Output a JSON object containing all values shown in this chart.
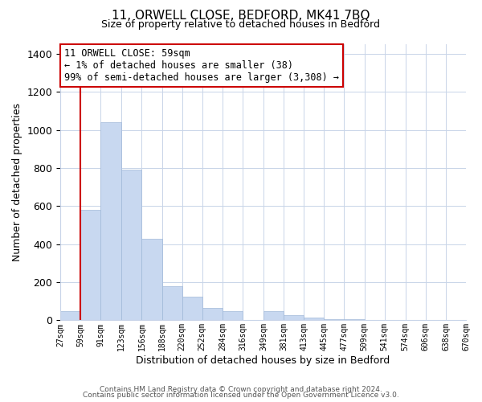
{
  "title_line1": "11, ORWELL CLOSE, BEDFORD, MK41 7BQ",
  "title_line2": "Size of property relative to detached houses in Bedford",
  "xlabel": "Distribution of detached houses by size in Bedford",
  "ylabel": "Number of detached properties",
  "bar_color": "#c8d8f0",
  "bar_edge_color": "#a0b8d8",
  "highlight_edge_color": "#cc0000",
  "bins": [
    27,
    59,
    91,
    123,
    156,
    188,
    220,
    252,
    284,
    316,
    349,
    381,
    413,
    445,
    477,
    509,
    541,
    574,
    606,
    638,
    670
  ],
  "bin_labels": [
    "27sqm",
    "59sqm",
    "91sqm",
    "123sqm",
    "156sqm",
    "188sqm",
    "220sqm",
    "252sqm",
    "284sqm",
    "316sqm",
    "349sqm",
    "381sqm",
    "413sqm",
    "445sqm",
    "477sqm",
    "509sqm",
    "541sqm",
    "574sqm",
    "606sqm",
    "638sqm",
    "670sqm"
  ],
  "values": [
    50,
    580,
    1040,
    790,
    430,
    180,
    125,
    65,
    50,
    0,
    50,
    25,
    15,
    5,
    5,
    0,
    0,
    0,
    0,
    0
  ],
  "highlight_bin_index": 1,
  "annotation_title": "11 ORWELL CLOSE: 59sqm",
  "annotation_line2": "← 1% of detached houses are smaller (38)",
  "annotation_line3": "99% of semi-detached houses are larger (3,308) →",
  "annotation_box_color": "#ffffff",
  "annotation_box_edge": "#cc0000",
  "ylim": [
    0,
    1450
  ],
  "yticks": [
    0,
    200,
    400,
    600,
    800,
    1000,
    1200,
    1400
  ],
  "footnote1": "Contains HM Land Registry data © Crown copyright and database right 2024.",
  "footnote2": "Contains public sector information licensed under the Open Government Licence v3.0.",
  "background_color": "#ffffff",
  "grid_color": "#c8d4e8"
}
